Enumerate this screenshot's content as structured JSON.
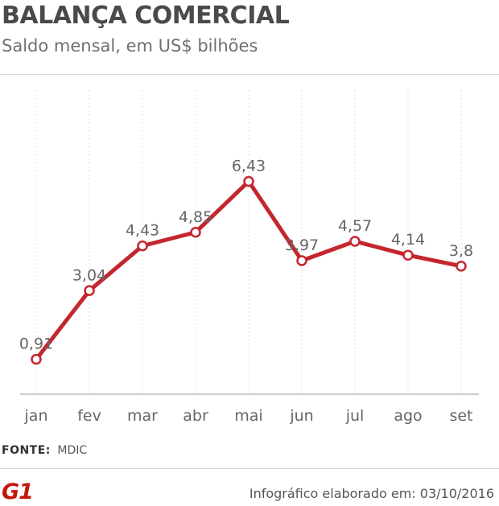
{
  "header": {
    "title": "BALANÇA COMERCIAL",
    "subtitle": "Saldo mensal, em US$ bilhões"
  },
  "chart_data": {
    "type": "line",
    "categories": [
      "jan",
      "fev",
      "mar",
      "abr",
      "mai",
      "jun",
      "jul",
      "ago",
      "set"
    ],
    "values": [
      0.91,
      3.04,
      4.43,
      4.85,
      6.43,
      3.97,
      4.57,
      4.14,
      3.8
    ],
    "data_labels": [
      "0,91",
      "3,04",
      "4,43",
      "4,85",
      "6,43",
      "3,97",
      "4,57",
      "4,14",
      "3,8"
    ],
    "ylim": [
      0,
      7
    ],
    "grid": "vertical",
    "colors": {
      "line": "#c4262e",
      "marker_fill": "#ffffff",
      "grid": "#e0e0e0",
      "axis": "#cccccc",
      "labels": "#666666"
    }
  },
  "footer": {
    "source_label": "FONTE:",
    "source_value": "MDIC",
    "logo_text": "G1",
    "credit": "Infográfico elaborado em: 03/10/2016"
  }
}
